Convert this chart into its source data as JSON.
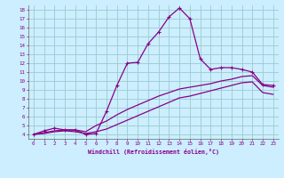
{
  "xlabel": "Windchill (Refroidissement éolien,°C)",
  "xlim": [
    -0.5,
    23.5
  ],
  "ylim": [
    3.5,
    18.5
  ],
  "xticks": [
    0,
    1,
    2,
    3,
    4,
    5,
    6,
    7,
    8,
    9,
    10,
    11,
    12,
    13,
    14,
    15,
    16,
    17,
    18,
    19,
    20,
    21,
    22,
    23
  ],
  "yticks": [
    4,
    5,
    6,
    7,
    8,
    9,
    10,
    11,
    12,
    13,
    14,
    15,
    16,
    17,
    18
  ],
  "bg_color": "#cceeff",
  "line_color": "#880088",
  "grid_color": "#99cccc",
  "curve1_x": [
    0,
    1,
    2,
    3,
    4,
    5,
    6,
    7,
    8,
    9,
    10,
    11,
    12,
    13,
    14,
    15,
    16,
    17,
    18,
    19,
    20,
    21,
    22,
    23
  ],
  "curve1_y": [
    4.0,
    4.4,
    4.7,
    4.5,
    4.5,
    4.0,
    4.1,
    6.6,
    9.5,
    12.0,
    12.1,
    14.2,
    15.5,
    17.2,
    18.2,
    17.0,
    12.5,
    11.3,
    11.5,
    11.5,
    11.3,
    11.0,
    9.6,
    9.5
  ],
  "curve2_x": [
    0,
    1,
    2,
    3,
    4,
    5,
    6,
    7,
    8,
    9,
    10,
    11,
    12,
    13,
    14,
    15,
    16,
    17,
    18,
    19,
    20,
    21,
    22,
    23
  ],
  "curve2_y": [
    4.0,
    4.2,
    4.4,
    4.5,
    4.5,
    4.3,
    5.0,
    5.5,
    6.2,
    6.8,
    7.3,
    7.8,
    8.3,
    8.7,
    9.1,
    9.3,
    9.5,
    9.7,
    10.0,
    10.2,
    10.5,
    10.6,
    9.5,
    9.3
  ],
  "curve3_x": [
    0,
    1,
    2,
    3,
    4,
    5,
    6,
    7,
    8,
    9,
    10,
    11,
    12,
    13,
    14,
    15,
    16,
    17,
    18,
    19,
    20,
    21,
    22,
    23
  ],
  "curve3_y": [
    4.0,
    4.1,
    4.3,
    4.4,
    4.3,
    4.1,
    4.3,
    4.6,
    5.1,
    5.6,
    6.1,
    6.6,
    7.1,
    7.6,
    8.1,
    8.3,
    8.6,
    8.9,
    9.2,
    9.5,
    9.8,
    9.9,
    8.7,
    8.5
  ]
}
